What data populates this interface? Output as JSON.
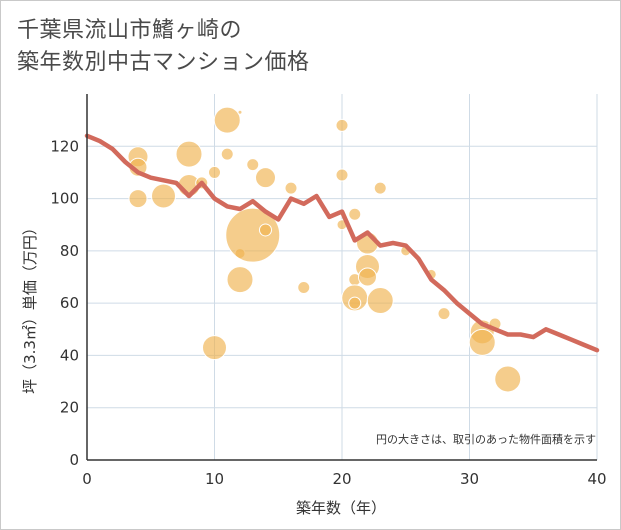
{
  "title_line1": "千葉県流山市鰭ヶ崎の",
  "title_line2": "築年数別中古マンション価格",
  "note": "円の大きさは、取引のあった物件面積を示す",
  "colors": {
    "bubble": "#f0b24f",
    "line": "#d26a5c",
    "grid": "#cfdbe6",
    "axis": "#333333"
  },
  "chart_data": {
    "type": "scatter",
    "xlabel": "築年数（年）",
    "ylabel": "坪（3.3㎡）単価（万円）",
    "xlim": [
      0,
      40
    ],
    "ylim": [
      0,
      140
    ],
    "xticks": [
      0,
      10,
      20,
      30,
      40
    ],
    "yticks": [
      0,
      20,
      40,
      60,
      80,
      100,
      120
    ],
    "bubbles": [
      {
        "x": 4,
        "y": 116,
        "r": 10
      },
      {
        "x": 4,
        "y": 112,
        "r": 9
      },
      {
        "x": 4,
        "y": 100,
        "r": 9
      },
      {
        "x": 6,
        "y": 101,
        "r": 12
      },
      {
        "x": 8,
        "y": 117,
        "r": 13
      },
      {
        "x": 8,
        "y": 105,
        "r": 11
      },
      {
        "x": 9,
        "y": 106,
        "r": 6
      },
      {
        "x": 10,
        "y": 110,
        "r": 6
      },
      {
        "x": 10,
        "y": 43,
        "r": 12
      },
      {
        "x": 11,
        "y": 130,
        "r": 13
      },
      {
        "x": 11,
        "y": 117,
        "r": 6
      },
      {
        "x": 12,
        "y": 133,
        "r": 2
      },
      {
        "x": 12,
        "y": 79,
        "r": 5
      },
      {
        "x": 12,
        "y": 69,
        "r": 13
      },
      {
        "x": 13,
        "y": 86,
        "r": 27
      },
      {
        "x": 13,
        "y": 113,
        "r": 6
      },
      {
        "x": 14,
        "y": 108,
        "r": 10
      },
      {
        "x": 14,
        "y": 88,
        "r": 6
      },
      {
        "x": 16,
        "y": 104,
        "r": 6
      },
      {
        "x": 17,
        "y": 66,
        "r": 6
      },
      {
        "x": 20,
        "y": 128,
        "r": 6
      },
      {
        "x": 20,
        "y": 109,
        "r": 6
      },
      {
        "x": 20,
        "y": 90,
        "r": 5
      },
      {
        "x": 21,
        "y": 94,
        "r": 6
      },
      {
        "x": 21,
        "y": 69,
        "r": 6
      },
      {
        "x": 21,
        "y": 62,
        "r": 13
      },
      {
        "x": 21,
        "y": 60,
        "r": 6
      },
      {
        "x": 22,
        "y": 83,
        "r": 11
      },
      {
        "x": 22,
        "y": 74,
        "r": 12
      },
      {
        "x": 22,
        "y": 70,
        "r": 9
      },
      {
        "x": 23,
        "y": 104,
        "r": 6
      },
      {
        "x": 23,
        "y": 61,
        "r": 13
      },
      {
        "x": 25,
        "y": 80,
        "r": 5
      },
      {
        "x": 27,
        "y": 71,
        "r": 5
      },
      {
        "x": 28,
        "y": 56,
        "r": 6
      },
      {
        "x": 31,
        "y": 49,
        "r": 12
      },
      {
        "x": 31,
        "y": 45,
        "r": 13
      },
      {
        "x": 32,
        "y": 52,
        "r": 6
      },
      {
        "x": 33,
        "y": 31,
        "r": 13
      }
    ],
    "trend": [
      {
        "x": 0,
        "y": 124
      },
      {
        "x": 1,
        "y": 122
      },
      {
        "x": 2,
        "y": 119
      },
      {
        "x": 3,
        "y": 114
      },
      {
        "x": 4,
        "y": 110
      },
      {
        "x": 5,
        "y": 108
      },
      {
        "x": 6,
        "y": 107
      },
      {
        "x": 7,
        "y": 106
      },
      {
        "x": 8,
        "y": 101
      },
      {
        "x": 9,
        "y": 106
      },
      {
        "x": 10,
        "y": 100
      },
      {
        "x": 11,
        "y": 97
      },
      {
        "x": 12,
        "y": 96
      },
      {
        "x": 13,
        "y": 99
      },
      {
        "x": 14,
        "y": 95
      },
      {
        "x": 15,
        "y": 92
      },
      {
        "x": 16,
        "y": 100
      },
      {
        "x": 17,
        "y": 98
      },
      {
        "x": 18,
        "y": 101
      },
      {
        "x": 19,
        "y": 93
      },
      {
        "x": 20,
        "y": 95
      },
      {
        "x": 21,
        "y": 84
      },
      {
        "x": 22,
        "y": 87
      },
      {
        "x": 23,
        "y": 82
      },
      {
        "x": 24,
        "y": 83
      },
      {
        "x": 25,
        "y": 82
      },
      {
        "x": 26,
        "y": 77
      },
      {
        "x": 27,
        "y": 69
      },
      {
        "x": 28,
        "y": 65
      },
      {
        "x": 29,
        "y": 60
      },
      {
        "x": 30,
        "y": 56
      },
      {
        "x": 31,
        "y": 52
      },
      {
        "x": 32,
        "y": 50
      },
      {
        "x": 33,
        "y": 48
      },
      {
        "x": 34,
        "y": 48
      },
      {
        "x": 35,
        "y": 47
      },
      {
        "x": 36,
        "y": 50
      },
      {
        "x": 37,
        "y": 48
      },
      {
        "x": 38,
        "y": 46
      },
      {
        "x": 39,
        "y": 44
      },
      {
        "x": 40,
        "y": 42
      }
    ]
  }
}
